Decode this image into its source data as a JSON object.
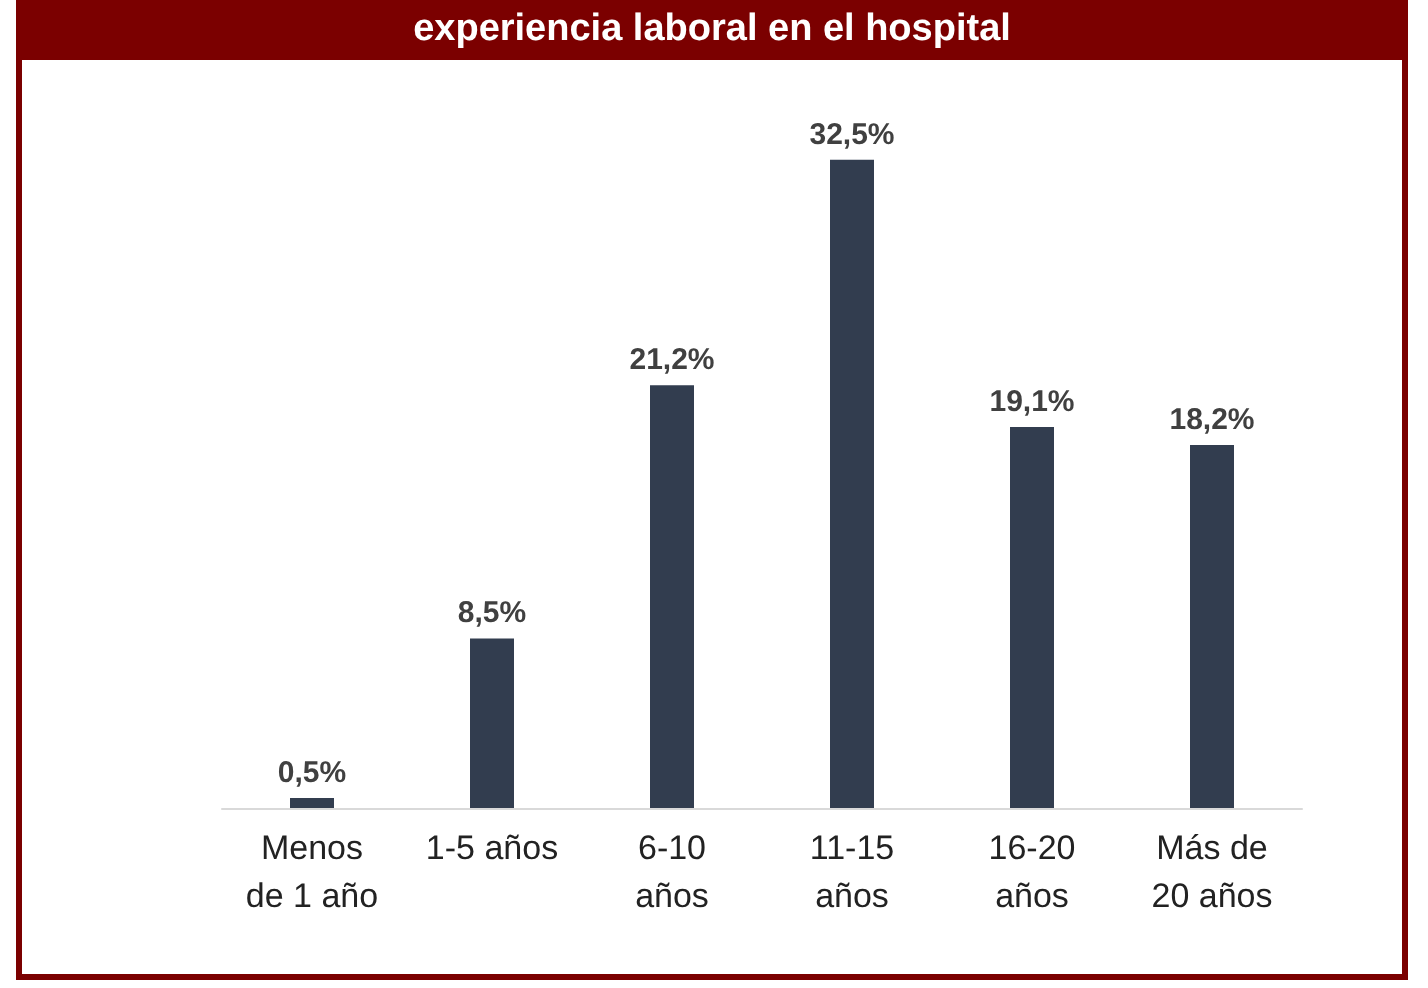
{
  "chart_data": {
    "type": "bar",
    "title": "experiencia laboral en el hospital",
    "categories": [
      "Menos\nde 1 año",
      "1-5 años",
      "6-10\naños",
      "11-15\naños",
      "16-20\naños",
      "Más de\n20 años"
    ],
    "values": [
      0.5,
      8.5,
      21.2,
      32.5,
      19.1,
      18.2
    ],
    "value_labels": [
      "0,5%",
      "8,5%",
      "21,2%",
      "32,5%",
      "19,1%",
      "18,2%"
    ],
    "color": "#323d4f"
  }
}
